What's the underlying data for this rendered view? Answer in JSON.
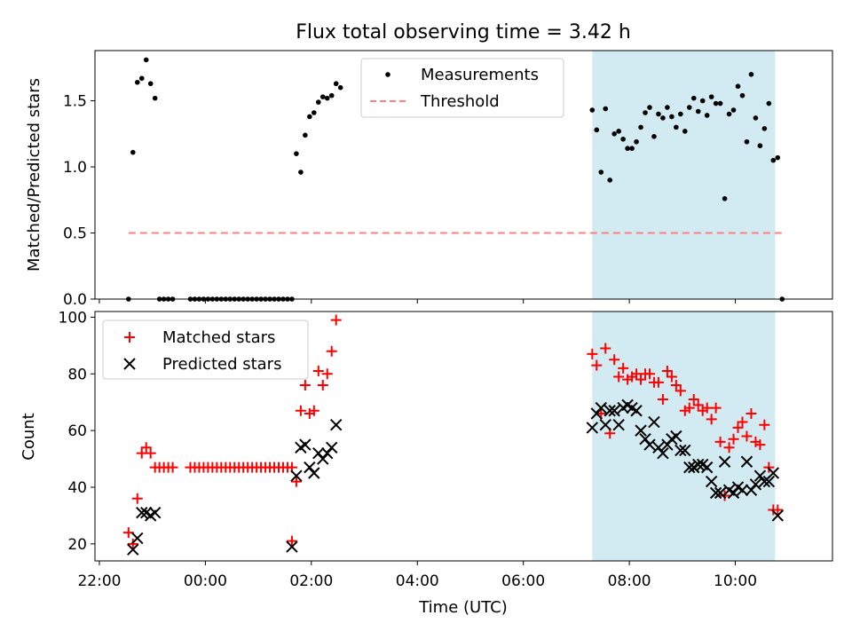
{
  "figure": {
    "title": "Flux total observing time = 3.42 h",
    "xlabel": "Time (UTC)",
    "x_ticks": [
      "22:00",
      "00:00",
      "02:00",
      "04:00",
      "06:00",
      "08:00",
      "10:00"
    ],
    "shaded_region": {
      "start": "07:18",
      "end": "10:45",
      "color": "#add8e6"
    }
  },
  "chart_data": [
    {
      "type": "scatter",
      "title": "Flux total observing time = 3.42 h",
      "xlabel": "",
      "ylabel": "Matched/Predicted stars",
      "ylim": [
        0,
        1.88
      ],
      "yticks": [
        "0.0",
        "0.5",
        "1.0",
        "1.5"
      ],
      "legend": {
        "placement": "top-center"
      },
      "series": [
        {
          "name": "Measurements",
          "color": "#000000",
          "marker": "dot",
          "points": [
            [
              "22:33",
              0.0
            ],
            [
              "22:38",
              1.11
            ],
            [
              "22:43",
              1.64
            ],
            [
              "22:48",
              1.67
            ],
            [
              "22:53",
              1.81
            ],
            [
              "22:58",
              1.63
            ],
            [
              "23:03",
              1.52
            ],
            [
              "23:08",
              0.0
            ],
            [
              "23:13",
              0.0
            ],
            [
              "23:18",
              0.0
            ],
            [
              "23:23",
              0.0
            ],
            [
              "23:43",
              0.0
            ],
            [
              "23:48",
              0.0
            ],
            [
              "23:53",
              0.0
            ],
            [
              "23:58",
              0.0
            ],
            [
              "00:03",
              0.0
            ],
            [
              "00:08",
              0.0
            ],
            [
              "00:13",
              0.0
            ],
            [
              "00:18",
              0.0
            ],
            [
              "00:23",
              0.0
            ],
            [
              "00:28",
              0.0
            ],
            [
              "00:33",
              0.0
            ],
            [
              "00:38",
              0.0
            ],
            [
              "00:43",
              0.0
            ],
            [
              "00:48",
              0.0
            ],
            [
              "00:53",
              0.0
            ],
            [
              "00:58",
              0.0
            ],
            [
              "01:03",
              0.0
            ],
            [
              "01:08",
              0.0
            ],
            [
              "01:13",
              0.0
            ],
            [
              "01:18",
              0.0
            ],
            [
              "01:23",
              0.0
            ],
            [
              "01:28",
              0.0
            ],
            [
              "01:33",
              0.0
            ],
            [
              "01:38",
              0.0
            ],
            [
              "01:43",
              1.1
            ],
            [
              "01:48",
              0.96
            ],
            [
              "01:53",
              1.24
            ],
            [
              "01:58",
              1.38
            ],
            [
              "02:03",
              1.41
            ],
            [
              "02:08",
              1.49
            ],
            [
              "02:13",
              1.53
            ],
            [
              "02:18",
              1.52
            ],
            [
              "02:23",
              1.54
            ],
            [
              "02:28",
              1.63
            ],
            [
              "02:33",
              1.6
            ],
            [
              "07:18",
              1.43
            ],
            [
              "07:23",
              1.28
            ],
            [
              "07:28",
              0.96
            ],
            [
              "07:33",
              1.44
            ],
            [
              "07:38",
              0.9
            ],
            [
              "07:43",
              1.25
            ],
            [
              "07:48",
              1.27
            ],
            [
              "07:53",
              1.21
            ],
            [
              "07:58",
              1.14
            ],
            [
              "08:03",
              1.14
            ],
            [
              "08:08",
              1.19
            ],
            [
              "08:13",
              1.3
            ],
            [
              "08:18",
              1.41
            ],
            [
              "08:23",
              1.45
            ],
            [
              "08:28",
              1.23
            ],
            [
              "08:33",
              1.4
            ],
            [
              "08:38",
              1.37
            ],
            [
              "08:43",
              1.45
            ],
            [
              "08:48",
              1.38
            ],
            [
              "08:53",
              1.3
            ],
            [
              "08:58",
              1.4
            ],
            [
              "09:03",
              1.27
            ],
            [
              "09:08",
              1.45
            ],
            [
              "09:13",
              1.52
            ],
            [
              "09:18",
              1.42
            ],
            [
              "09:23",
              1.5
            ],
            [
              "09:28",
              1.39
            ],
            [
              "09:33",
              1.53
            ],
            [
              "09:38",
              1.48
            ],
            [
              "09:43",
              1.48
            ],
            [
              "09:48",
              0.76
            ],
            [
              "09:53",
              1.4
            ],
            [
              "09:58",
              1.43
            ],
            [
              "10:03",
              1.61
            ],
            [
              "10:08",
              1.54
            ],
            [
              "10:13",
              1.19
            ],
            [
              "10:18",
              1.7
            ],
            [
              "10:23",
              1.37
            ],
            [
              "10:28",
              1.16
            ],
            [
              "10:33",
              1.29
            ],
            [
              "10:38",
              1.48
            ],
            [
              "10:43",
              1.05
            ],
            [
              "10:48",
              1.07
            ],
            [
              "10:53",
              0.0
            ]
          ]
        },
        {
          "name": "Threshold",
          "color": "#ff8080",
          "style": "dashed",
          "points": [
            [
              "22:33",
              0.5
            ],
            [
              "10:53",
              0.5
            ]
          ]
        }
      ]
    },
    {
      "type": "scatter",
      "xlabel": "Time (UTC)",
      "ylabel": "Count",
      "ylim": [
        14,
        102
      ],
      "yticks": [
        "20",
        "40",
        "60",
        "80",
        "100"
      ],
      "legend": {
        "placement": "top-left"
      },
      "series": [
        {
          "name": "Matched stars",
          "color": "#ff0000",
          "marker": "plus",
          "points": [
            [
              "22:33",
              24
            ],
            [
              "22:38",
              20
            ],
            [
              "22:43",
              36
            ],
            [
              "22:48",
              52
            ],
            [
              "22:53",
              54
            ],
            [
              "22:58",
              52
            ],
            [
              "23:03",
              47
            ],
            [
              "23:08",
              47
            ],
            [
              "23:13",
              47
            ],
            [
              "23:18",
              47
            ],
            [
              "23:23",
              47
            ],
            [
              "23:43",
              47
            ],
            [
              "23:48",
              47
            ],
            [
              "23:53",
              47
            ],
            [
              "23:58",
              47
            ],
            [
              "00:03",
              47
            ],
            [
              "00:08",
              47
            ],
            [
              "00:13",
              47
            ],
            [
              "00:18",
              47
            ],
            [
              "00:23",
              47
            ],
            [
              "00:28",
              47
            ],
            [
              "00:33",
              47
            ],
            [
              "00:38",
              47
            ],
            [
              "00:43",
              47
            ],
            [
              "00:48",
              47
            ],
            [
              "00:53",
              47
            ],
            [
              "00:58",
              47
            ],
            [
              "01:03",
              47
            ],
            [
              "01:08",
              47
            ],
            [
              "01:13",
              47
            ],
            [
              "01:18",
              47
            ],
            [
              "01:23",
              47
            ],
            [
              "01:28",
              47
            ],
            [
              "01:33",
              47
            ],
            [
              "01:38",
              47
            ],
            [
              "01:38",
              21
            ],
            [
              "01:43",
              42
            ],
            [
              "01:48",
              67
            ],
            [
              "01:53",
              76
            ],
            [
              "01:58",
              66
            ],
            [
              "02:03",
              67
            ],
            [
              "02:08",
              81
            ],
            [
              "02:13",
              76
            ],
            [
              "02:18",
              80
            ],
            [
              "02:23",
              88
            ],
            [
              "02:28",
              99
            ],
            [
              "07:18",
              87
            ],
            [
              "07:23",
              83
            ],
            [
              "07:28",
              66
            ],
            [
              "07:33",
              89
            ],
            [
              "07:38",
              59
            ],
            [
              "07:43",
              85
            ],
            [
              "07:48",
              79
            ],
            [
              "07:53",
              82
            ],
            [
              "07:58",
              78
            ],
            [
              "08:03",
              79
            ],
            [
              "08:08",
              80
            ],
            [
              "08:13",
              78
            ],
            [
              "08:18",
              80
            ],
            [
              "08:23",
              80
            ],
            [
              "08:28",
              77
            ],
            [
              "08:33",
              77
            ],
            [
              "08:38",
              71
            ],
            [
              "08:43",
              81
            ],
            [
              "08:48",
              79
            ],
            [
              "08:53",
              76
            ],
            [
              "08:58",
              74
            ],
            [
              "09:03",
              67
            ],
            [
              "09:08",
              68
            ],
            [
              "09:13",
              71
            ],
            [
              "09:18",
              69
            ],
            [
              "09:23",
              67
            ],
            [
              "09:28",
              68
            ],
            [
              "09:33",
              64
            ],
            [
              "09:38",
              68
            ],
            [
              "09:43",
              56
            ],
            [
              "09:48",
              37
            ],
            [
              "09:53",
              54
            ],
            [
              "09:58",
              57
            ],
            [
              "10:03",
              61
            ],
            [
              "10:08",
              63
            ],
            [
              "10:13",
              58
            ],
            [
              "10:18",
              66
            ],
            [
              "10:23",
              56
            ],
            [
              "10:28",
              55
            ],
            [
              "10:33",
              62
            ],
            [
              "10:38",
              47
            ],
            [
              "10:43",
              32
            ],
            [
              "10:48",
              32
            ]
          ]
        },
        {
          "name": "Predicted stars",
          "color": "#000000",
          "marker": "cross",
          "points": [
            [
              "22:38",
              18
            ],
            [
              "22:43",
              22
            ],
            [
              "22:48",
              31
            ],
            [
              "22:53",
              31
            ],
            [
              "22:58",
              30
            ],
            [
              "23:03",
              31
            ],
            [
              "01:38",
              19
            ],
            [
              "01:43",
              44
            ],
            [
              "01:48",
              54
            ],
            [
              "01:53",
              55
            ],
            [
              "01:58",
              47
            ],
            [
              "02:03",
              45
            ],
            [
              "02:08",
              52
            ],
            [
              "02:13",
              50
            ],
            [
              "02:18",
              52
            ],
            [
              "02:23",
              54
            ],
            [
              "02:28",
              62
            ],
            [
              "07:18",
              61
            ],
            [
              "07:23",
              66
            ],
            [
              "07:28",
              68
            ],
            [
              "07:33",
              62
            ],
            [
              "07:38",
              67
            ],
            [
              "07:43",
              67
            ],
            [
              "07:48",
              62
            ],
            [
              "07:53",
              68
            ],
            [
              "07:58",
              69
            ],
            [
              "08:03",
              68
            ],
            [
              "08:08",
              67
            ],
            [
              "08:13",
              60
            ],
            [
              "08:18",
              57
            ],
            [
              "08:23",
              55
            ],
            [
              "08:28",
              63
            ],
            [
              "08:33",
              54
            ],
            [
              "08:38",
              52
            ],
            [
              "08:43",
              55
            ],
            [
              "08:48",
              57
            ],
            [
              "08:53",
              58
            ],
            [
              "08:58",
              53
            ],
            [
              "09:03",
              53
            ],
            [
              "09:08",
              47
            ],
            [
              "09:13",
              47
            ],
            [
              "09:18",
              48
            ],
            [
              "09:23",
              48
            ],
            [
              "09:28",
              47
            ],
            [
              "09:33",
              42
            ],
            [
              "09:38",
              38
            ],
            [
              "09:43",
              38
            ],
            [
              "09:48",
              49
            ],
            [
              "09:53",
              39
            ],
            [
              "09:58",
              38
            ],
            [
              "10:03",
              40
            ],
            [
              "10:08",
              39
            ],
            [
              "10:13",
              49
            ],
            [
              "10:18",
              39
            ],
            [
              "10:23",
              41
            ],
            [
              "10:28",
              44
            ],
            [
              "10:33",
              42
            ],
            [
              "10:38",
              42
            ],
            [
              "10:43",
              45
            ],
            [
              "10:48",
              30
            ]
          ]
        }
      ]
    }
  ]
}
